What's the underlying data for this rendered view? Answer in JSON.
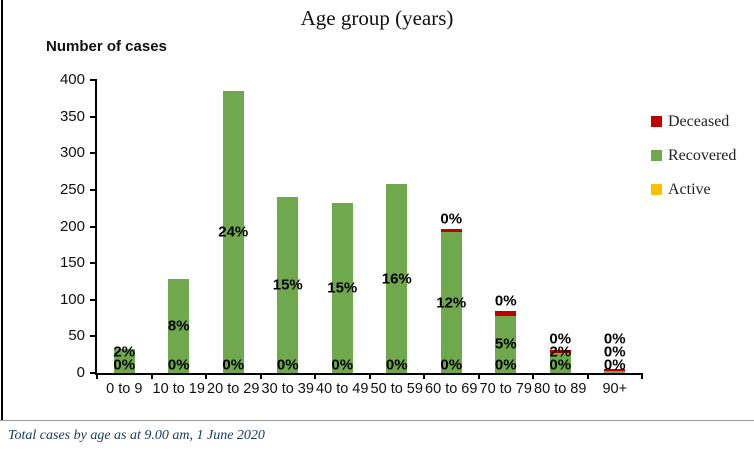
{
  "chart_data": {
    "type": "bar",
    "stacked": true,
    "title": "Age group (years)",
    "ylabel": "Number of cases",
    "ylim": [
      0,
      400
    ],
    "ytick_step": 50,
    "grid": false,
    "legend_position": "right",
    "categories": [
      "0 to 9",
      "10 to 19",
      "20 to 29",
      "30 to 39",
      "40 to 49",
      "50 to 59",
      "60 to 69",
      "70 to 79",
      "80 to 89",
      "90+"
    ],
    "series": [
      {
        "name": "Recovered",
        "color": "#70A84D",
        "values": [
          33,
          128,
          385,
          240,
          232,
          258,
          192,
          78,
          27,
          4
        ]
      },
      {
        "name": "Deceased",
        "color": "#C00000",
        "values": [
          0,
          0,
          0,
          0,
          0,
          0,
          4,
          6,
          4,
          2
        ]
      },
      {
        "name": "Active",
        "color": "#FFC000",
        "values": [
          0,
          0,
          0,
          0,
          0,
          0,
          0,
          0,
          0,
          0
        ]
      }
    ],
    "bar_labels": {
      "deceased": [
        "",
        "",
        "",
        "",
        "",
        "",
        "0%",
        "0%",
        "0%",
        "0%"
      ],
      "recovered": [
        "2%",
        "8%",
        "24%",
        "15%",
        "15%",
        "16%",
        "12%",
        "5%",
        "2%",
        "0%"
      ],
      "active": [
        "0%",
        "0%",
        "0%",
        "0%",
        "0%",
        "0%",
        "0%",
        "0%",
        "0%",
        "0%"
      ]
    },
    "legend": [
      {
        "name": "Deceased",
        "color": "#C00000"
      },
      {
        "name": "Recovered",
        "color": "#70A84D"
      },
      {
        "name": "Active",
        "color": "#FFC000"
      }
    ]
  },
  "footer": {
    "caption": "Total cases by age as at 9.00 am,  1 June 2020"
  }
}
